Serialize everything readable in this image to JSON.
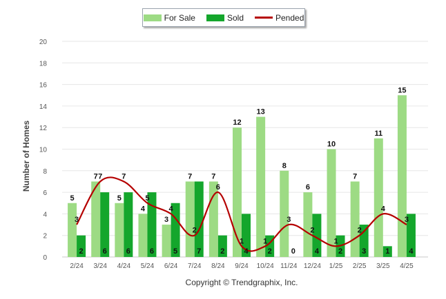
{
  "legend": {
    "for_sale": "For Sale",
    "sold": "Sold",
    "pended": "Pended"
  },
  "colors": {
    "for_sale": "#9ddb84",
    "sold": "#14a62c",
    "pended": "#b50000"
  },
  "copyright": "Copyright © Trendgraphix, Inc.",
  "chart_data": {
    "type": "bar",
    "categories": [
      "2/24",
      "3/24",
      "4/24",
      "5/24",
      "6/24",
      "7/24",
      "8/24",
      "9/24",
      "10/24",
      "11/24",
      "12/24",
      "1/25",
      "2/25",
      "3/25",
      "4/25"
    ],
    "series": [
      {
        "name": "For Sale",
        "kind": "bar",
        "values": [
          5,
          7,
          5,
          4,
          3,
          7,
          7,
          12,
          13,
          8,
          6,
          10,
          7,
          11,
          15
        ]
      },
      {
        "name": "Sold",
        "kind": "bar",
        "values": [
          2,
          6,
          6,
          6,
          5,
          7,
          2,
          4,
          2,
          0,
          4,
          2,
          3,
          1,
          4
        ]
      },
      {
        "name": "Pended",
        "kind": "line",
        "values": [
          3,
          7,
          7,
          5,
          4,
          2,
          6,
          1,
          1,
          3,
          2,
          1,
          2,
          4,
          3
        ]
      }
    ],
    "xlabel": "",
    "ylabel": "Number of Homes",
    "ylim": [
      0,
      20
    ],
    "yticks": [
      0,
      2,
      4,
      6,
      8,
      10,
      12,
      14,
      16,
      18,
      20
    ],
    "grid": true,
    "legend_position": "top-center"
  }
}
